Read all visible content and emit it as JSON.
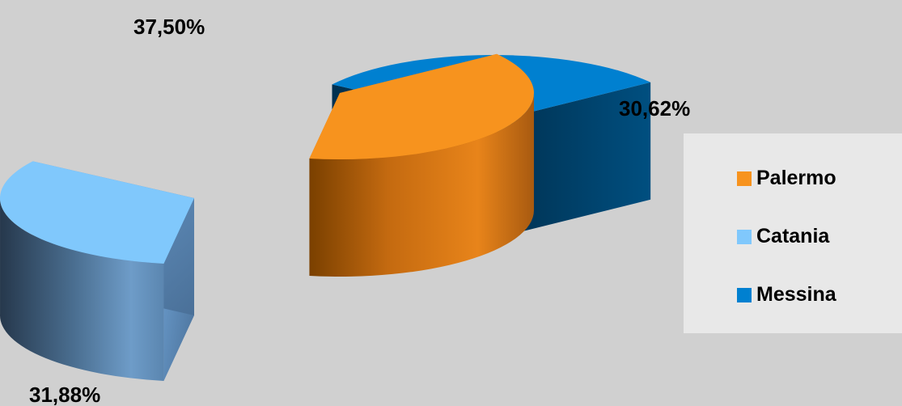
{
  "chart_data": {
    "type": "pie",
    "style": "3d-exploded",
    "categories": [
      "Palermo",
      "Catania",
      "Messina"
    ],
    "values": [
      37.5,
      31.88,
      30.62
    ],
    "labels": [
      "37,50%",
      "31,88%",
      "30,62%"
    ],
    "colors": [
      "#f7931e",
      "#80c8fc",
      "#0080d0"
    ],
    "legend": {
      "position": "right",
      "entries": [
        "Palermo",
        "Catania",
        "Messina"
      ]
    },
    "title": ""
  }
}
